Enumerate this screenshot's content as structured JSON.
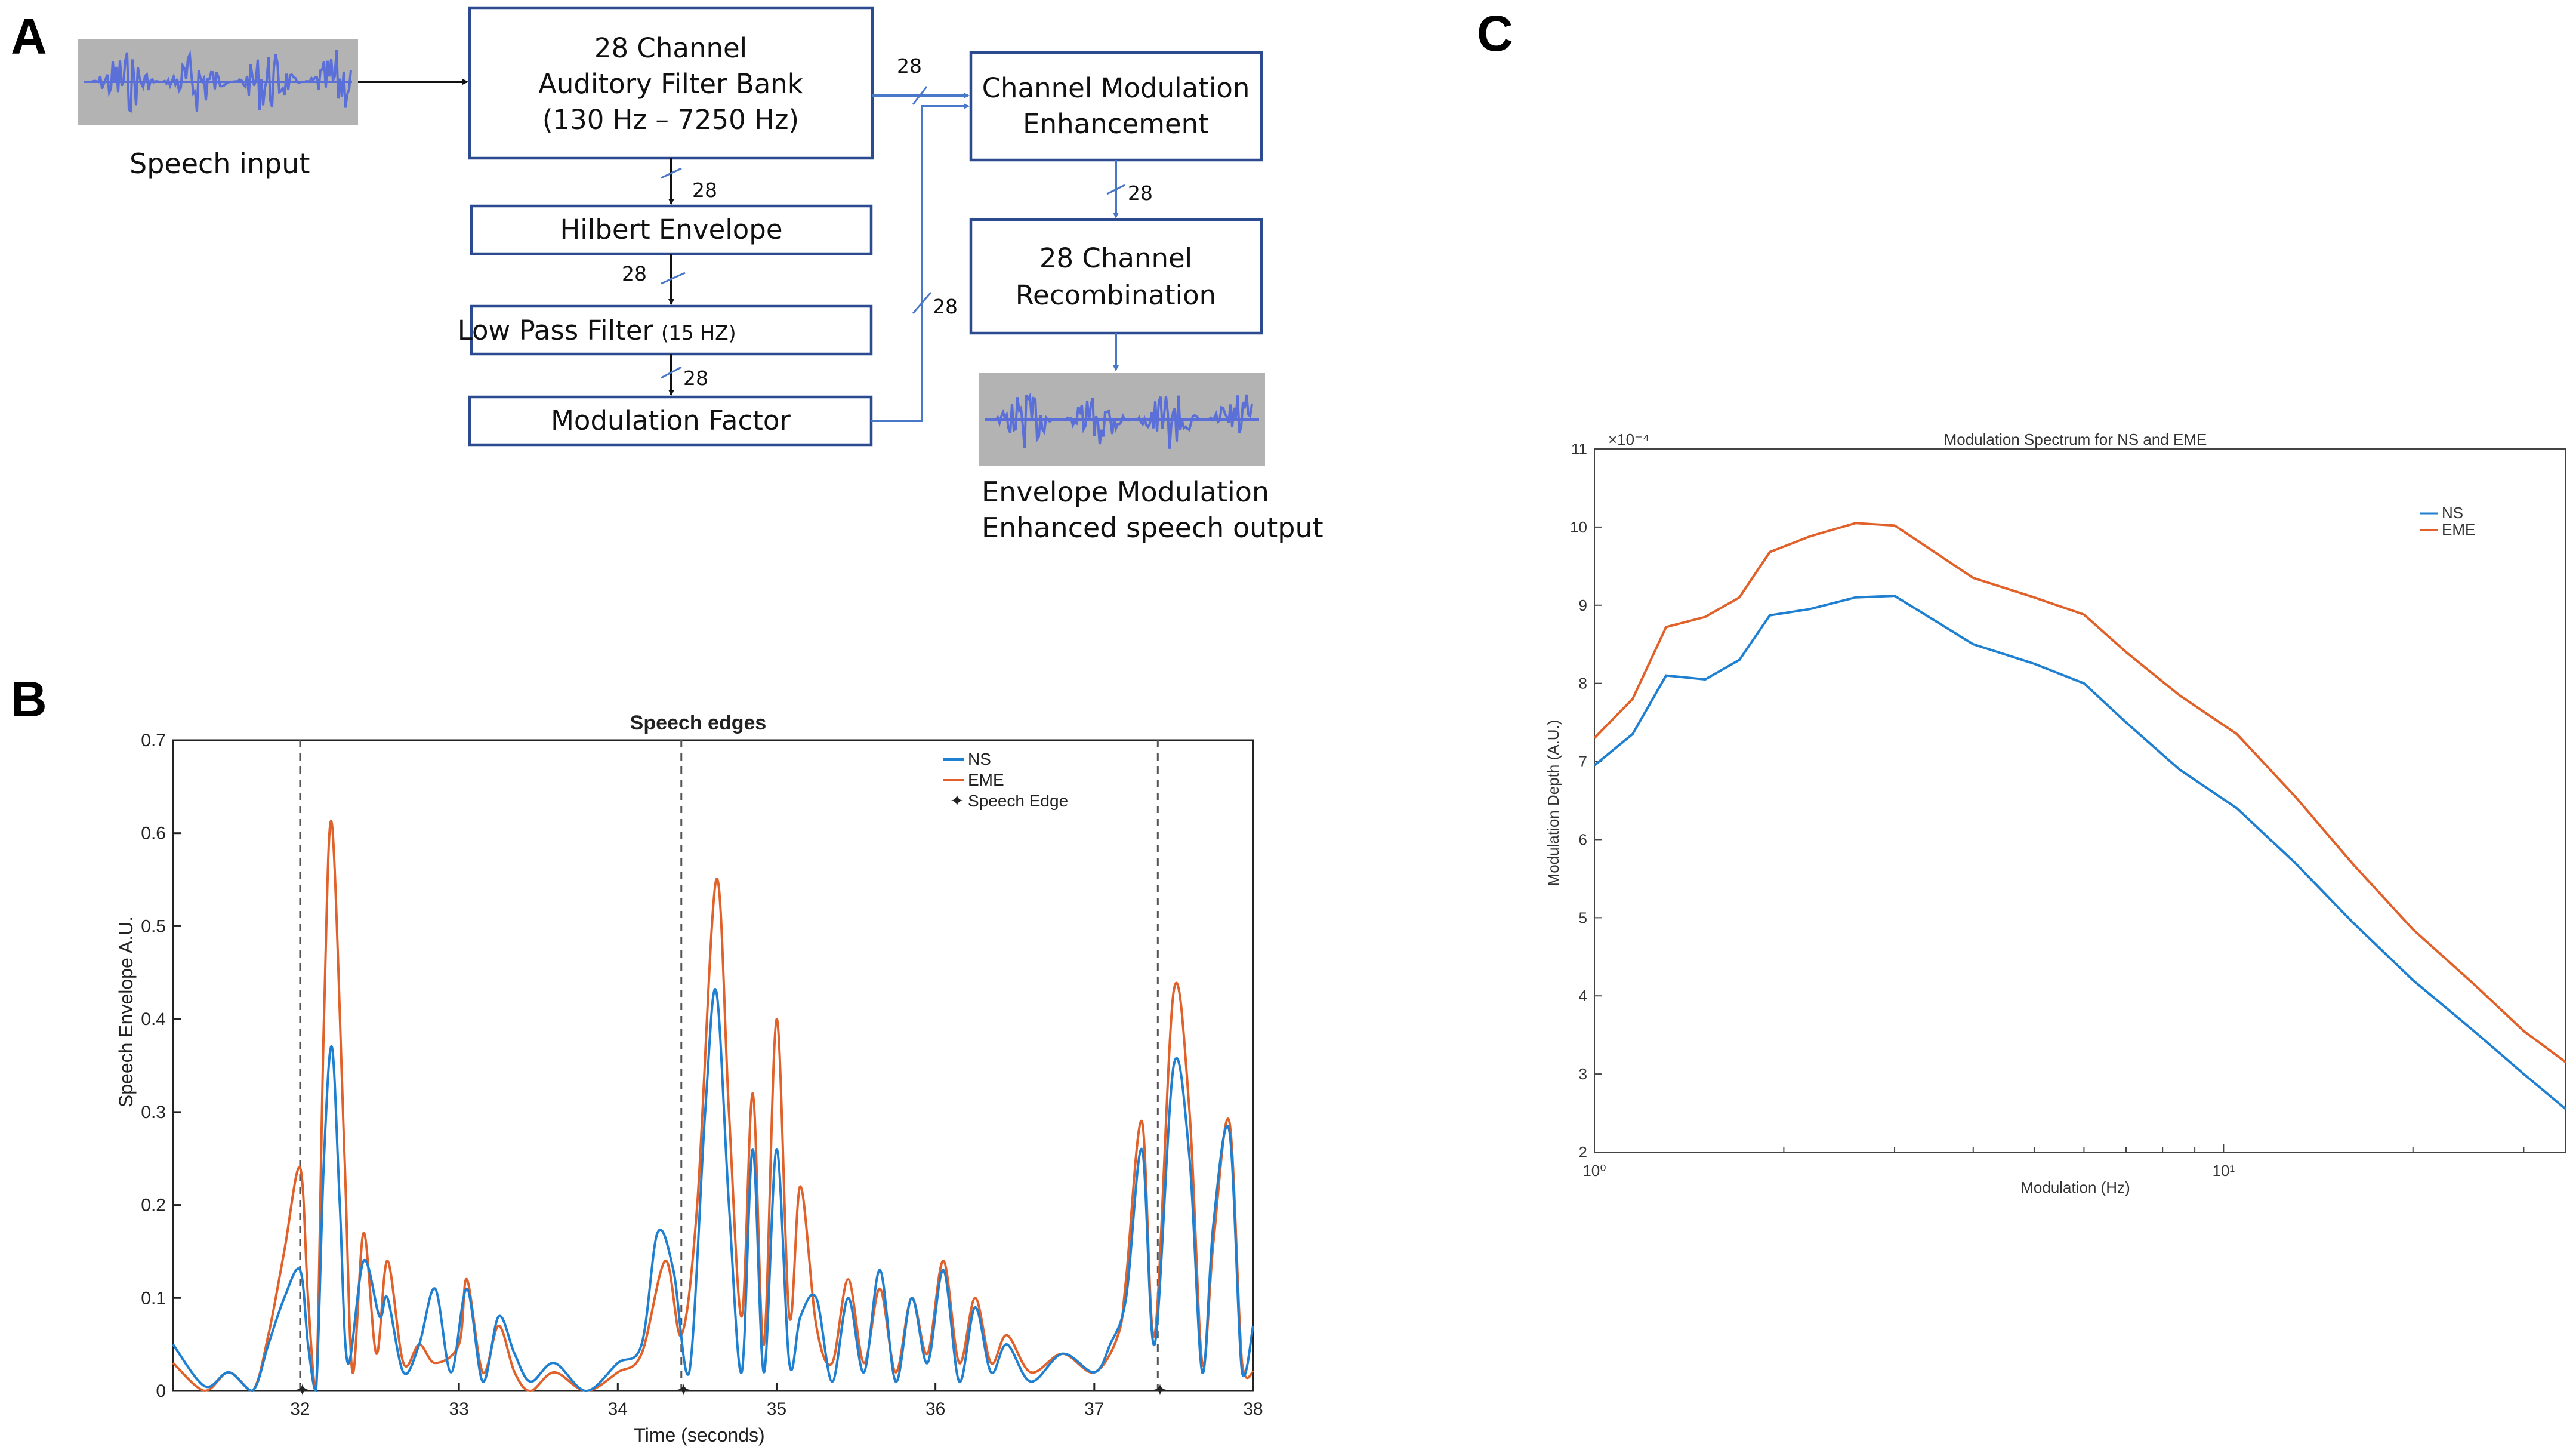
{
  "panel_labels": {
    "a": "A",
    "b": "B",
    "c": "C"
  },
  "colors": {
    "ns": "#1f7fd0",
    "eme": "#e0622a",
    "box_border": "#2b4a8f",
    "connector_blue": "#4a78c8",
    "waveform": "#5a6fd8",
    "waveform_bg": "#b3b3b3"
  },
  "diagram": {
    "speech_input_label": "Speech input",
    "filter_bank": {
      "line1": "28 Channel",
      "line2": "Auditory Filter Bank",
      "line3": "(130 Hz – 7250 Hz)"
    },
    "hilbert": "Hilbert Envelope",
    "lowpass_main": "Low Pass Filter",
    "lowpass_freq": "(15 HZ)",
    "modulation_factor": "Modulation Factor",
    "channel_mod": {
      "line1": "Channel Modulation",
      "line2": "Enhancement"
    },
    "recombination": {
      "line1": "28 Channel",
      "line2": "Recombination"
    },
    "output_label": {
      "line1": "Envelope Modulation",
      "line2": "Enhanced speech output"
    },
    "channel_counts": {
      "fb_to_cme": "28",
      "fb_to_hilbert": "28",
      "hilbert_to_lp": "28",
      "lp_to_mf": "28",
      "mf_to_cme": "28",
      "cme_to_recomb": "28"
    }
  },
  "chart_data": [
    {
      "type": "line",
      "title": "Speech edges",
      "xlabel": "Time (seconds)",
      "ylabel": "Speech Envelope  A.U.",
      "xlim": [
        31.2,
        38
      ],
      "ylim": [
        0,
        0.7
      ],
      "xticks": [
        "32",
        "33",
        "34",
        "35",
        "36",
        "37",
        "38"
      ],
      "yticks": [
        "0",
        "0.1",
        "0.2",
        "0.3",
        "0.4",
        "0.5",
        "0.6",
        "0.7"
      ],
      "legend": [
        "NS",
        "EME",
        "Speech Edge"
      ],
      "speech_edges": [
        32.0,
        34.4,
        37.4
      ],
      "series": [
        {
          "name": "NS",
          "points": [
            [
              31.2,
              0.05
            ],
            [
              31.4,
              0.005
            ],
            [
              31.55,
              0.02
            ],
            [
              31.7,
              0.0
            ],
            [
              31.8,
              0.05
            ],
            [
              31.9,
              0.1
            ],
            [
              32.0,
              0.13
            ],
            [
              32.05,
              0.05
            ],
            [
              32.1,
              0.0
            ],
            [
              32.15,
              0.25
            ],
            [
              32.2,
              0.37
            ],
            [
              32.25,
              0.2
            ],
            [
              32.3,
              0.03
            ],
            [
              32.4,
              0.14
            ],
            [
              32.5,
              0.08
            ],
            [
              32.55,
              0.1
            ],
            [
              32.65,
              0.02
            ],
            [
              32.75,
              0.05
            ],
            [
              32.85,
              0.11
            ],
            [
              32.95,
              0.02
            ],
            [
              33.05,
              0.11
            ],
            [
              33.15,
              0.01
            ],
            [
              33.25,
              0.08
            ],
            [
              33.35,
              0.04
            ],
            [
              33.45,
              0.01
            ],
            [
              33.6,
              0.03
            ],
            [
              33.8,
              0.0
            ],
            [
              34.0,
              0.03
            ],
            [
              34.15,
              0.05
            ],
            [
              34.25,
              0.17
            ],
            [
              34.35,
              0.13
            ],
            [
              34.45,
              0.02
            ],
            [
              34.55,
              0.3
            ],
            [
              34.62,
              0.43
            ],
            [
              34.7,
              0.2
            ],
            [
              34.78,
              0.02
            ],
            [
              34.85,
              0.26
            ],
            [
              34.92,
              0.02
            ],
            [
              35.0,
              0.26
            ],
            [
              35.08,
              0.03
            ],
            [
              35.15,
              0.08
            ],
            [
              35.25,
              0.1
            ],
            [
              35.35,
              0.01
            ],
            [
              35.45,
              0.1
            ],
            [
              35.55,
              0.02
            ],
            [
              35.65,
              0.13
            ],
            [
              35.75,
              0.01
            ],
            [
              35.85,
              0.1
            ],
            [
              35.95,
              0.03
            ],
            [
              36.05,
              0.13
            ],
            [
              36.15,
              0.01
            ],
            [
              36.25,
              0.09
            ],
            [
              36.35,
              0.02
            ],
            [
              36.45,
              0.05
            ],
            [
              36.6,
              0.01
            ],
            [
              36.8,
              0.04
            ],
            [
              37.0,
              0.02
            ],
            [
              37.1,
              0.05
            ],
            [
              37.2,
              0.1
            ],
            [
              37.3,
              0.26
            ],
            [
              37.38,
              0.05
            ],
            [
              37.5,
              0.35
            ],
            [
              37.6,
              0.25
            ],
            [
              37.68,
              0.02
            ],
            [
              37.75,
              0.18
            ],
            [
              37.85,
              0.28
            ],
            [
              37.93,
              0.02
            ],
            [
              38.0,
              0.07
            ]
          ]
        },
        {
          "name": "EME",
          "points": [
            [
              31.2,
              0.03
            ],
            [
              31.4,
              0.0
            ],
            [
              31.55,
              0.02
            ],
            [
              31.7,
              0.0
            ],
            [
              31.8,
              0.06
            ],
            [
              31.9,
              0.15
            ],
            [
              32.0,
              0.24
            ],
            [
              32.05,
              0.1
            ],
            [
              32.1,
              0.0
            ],
            [
              32.15,
              0.4
            ],
            [
              32.2,
              0.61
            ],
            [
              32.28,
              0.25
            ],
            [
              32.33,
              0.02
            ],
            [
              32.4,
              0.17
            ],
            [
              32.48,
              0.04
            ],
            [
              32.55,
              0.14
            ],
            [
              32.65,
              0.03
            ],
            [
              32.75,
              0.05
            ],
            [
              32.85,
              0.03
            ],
            [
              33.0,
              0.05
            ],
            [
              33.05,
              0.12
            ],
            [
              33.15,
              0.02
            ],
            [
              33.25,
              0.07
            ],
            [
              33.35,
              0.02
            ],
            [
              33.45,
              0.0
            ],
            [
              33.6,
              0.02
            ],
            [
              33.8,
              0.0
            ],
            [
              34.0,
              0.02
            ],
            [
              34.15,
              0.04
            ],
            [
              34.3,
              0.14
            ],
            [
              34.4,
              0.06
            ],
            [
              34.5,
              0.2
            ],
            [
              34.62,
              0.55
            ],
            [
              34.7,
              0.3
            ],
            [
              34.78,
              0.08
            ],
            [
              34.85,
              0.32
            ],
            [
              34.92,
              0.05
            ],
            [
              35.0,
              0.4
            ],
            [
              35.08,
              0.08
            ],
            [
              35.15,
              0.22
            ],
            [
              35.25,
              0.07
            ],
            [
              35.35,
              0.03
            ],
            [
              35.45,
              0.12
            ],
            [
              35.55,
              0.03
            ],
            [
              35.65,
              0.11
            ],
            [
              35.75,
              0.02
            ],
            [
              35.85,
              0.1
            ],
            [
              35.95,
              0.04
            ],
            [
              36.05,
              0.14
            ],
            [
              36.15,
              0.03
            ],
            [
              36.25,
              0.1
            ],
            [
              36.35,
              0.03
            ],
            [
              36.45,
              0.06
            ],
            [
              36.6,
              0.02
            ],
            [
              36.8,
              0.04
            ],
            [
              37.0,
              0.02
            ],
            [
              37.15,
              0.06
            ],
            [
              37.2,
              0.12
            ],
            [
              37.3,
              0.29
            ],
            [
              37.38,
              0.06
            ],
            [
              37.5,
              0.43
            ],
            [
              37.6,
              0.3
            ],
            [
              37.68,
              0.03
            ],
            [
              37.75,
              0.16
            ],
            [
              37.85,
              0.29
            ],
            [
              37.93,
              0.03
            ],
            [
              38.0,
              0.02
            ]
          ]
        }
      ]
    },
    {
      "type": "line",
      "title": "Modulation Spectrum for NS and EME",
      "xlabel": "Modulation (Hz)",
      "ylabel": "Modulation Depth (A.U.)",
      "xscale": "log",
      "xlim": [
        1,
        35
      ],
      "ylim": [
        2,
        11
      ],
      "yticks": [
        "2",
        "3",
        "4",
        "5",
        "6",
        "7",
        "8",
        "9",
        "10",
        "11"
      ],
      "y_exponent": "×10⁻⁴",
      "xticks": [
        "10⁰",
        "10¹"
      ],
      "legend": [
        "NS",
        "EME"
      ],
      "series": [
        {
          "name": "NS",
          "points": [
            [
              1.0,
              6.95
            ],
            [
              1.15,
              7.35
            ],
            [
              1.3,
              8.1
            ],
            [
              1.5,
              8.05
            ],
            [
              1.7,
              8.3
            ],
            [
              1.9,
              8.87
            ],
            [
              2.2,
              8.95
            ],
            [
              2.6,
              9.1
            ],
            [
              3.0,
              9.12
            ],
            [
              4.0,
              8.5
            ],
            [
              5.0,
              8.25
            ],
            [
              6.0,
              8.0
            ],
            [
              7.0,
              7.5
            ],
            [
              8.5,
              6.9
            ],
            [
              10.5,
              6.4
            ],
            [
              13.0,
              5.7
            ],
            [
              16.0,
              4.95
            ],
            [
              20.0,
              4.2
            ],
            [
              25.0,
              3.55
            ],
            [
              30.0,
              3.0
            ],
            [
              35.0,
              2.55
            ]
          ]
        },
        {
          "name": "EME",
          "points": [
            [
              1.0,
              7.3
            ],
            [
              1.15,
              7.8
            ],
            [
              1.3,
              8.72
            ],
            [
              1.5,
              8.85
            ],
            [
              1.7,
              9.1
            ],
            [
              1.9,
              9.68
            ],
            [
              2.2,
              9.88
            ],
            [
              2.6,
              10.05
            ],
            [
              3.0,
              10.02
            ],
            [
              4.0,
              9.35
            ],
            [
              5.0,
              9.1
            ],
            [
              6.0,
              8.88
            ],
            [
              7.0,
              8.4
            ],
            [
              8.5,
              7.85
            ],
            [
              10.5,
              7.35
            ],
            [
              13.0,
              6.55
            ],
            [
              16.0,
              5.7
            ],
            [
              20.0,
              4.85
            ],
            [
              25.0,
              4.15
            ],
            [
              30.0,
              3.55
            ],
            [
              35.0,
              3.15
            ]
          ]
        }
      ]
    }
  ]
}
